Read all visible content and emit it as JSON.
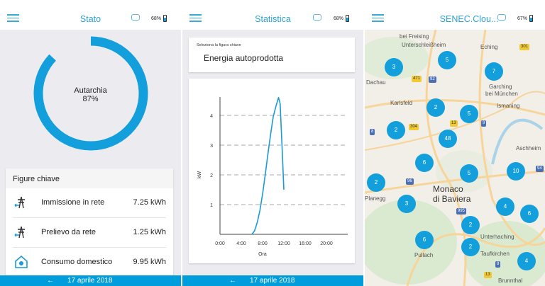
{
  "accent": "#139fdc",
  "bottom_date": "17 aprile 2018",
  "status": {
    "title": "Stato",
    "battery": "68%",
    "ring": {
      "label": "Autarchia",
      "value": "87%",
      "percent": 87
    },
    "key_figures": {
      "title": "Figure chiave",
      "rows": [
        {
          "icon": "grid-feed-in-icon",
          "label": "Immissione in rete",
          "value": "7.25 kWh"
        },
        {
          "icon": "grid-draw-icon",
          "label": "Prelievo da rete",
          "value": "1.25 kWh"
        },
        {
          "icon": "house-consumption-icon",
          "label": "Consumo domestico",
          "value": "9.95 kWh"
        }
      ]
    }
  },
  "stats": {
    "title": "Statistica",
    "battery": "68%",
    "select_label": "Seleziona la figura chiave",
    "select_value": "Energia autoprodotta",
    "chart_data": {
      "type": "line",
      "xlabel": "Ora",
      "ylabel": "kW",
      "xlim": [
        0,
        24
      ],
      "ylim": [
        0,
        4.6
      ],
      "xticks": [
        "0:00",
        "4:00",
        "8:00",
        "12:00",
        "16:00",
        "20:00"
      ],
      "yticks": [
        "1",
        "2",
        "3",
        "4"
      ],
      "grid": "horizontal dashed",
      "x": [
        6,
        6.5,
        7,
        7.5,
        8,
        8.5,
        9,
        9.5,
        10,
        10.5,
        11,
        11.3,
        11.6,
        12
      ],
      "values": [
        0,
        0.12,
        0.4,
        0.8,
        1.35,
        2.0,
        2.7,
        3.35,
        3.95,
        4.3,
        4.6,
        4.4,
        3.2,
        1.5
      ]
    }
  },
  "map": {
    "title": "SENEC.Clou...",
    "battery": "67%",
    "places": [
      "bei Freising",
      "Eching",
      "Unterschleißheim",
      "Dachau",
      "Garching",
      "bei München",
      "Karlsfeld",
      "Ismaning",
      "Aschheim",
      "Monaco",
      "di Baviera",
      "Planegg",
      "Unterhaching",
      "Taufkirchen",
      "Pullach",
      "Brunnthal"
    ],
    "roads": [
      "301",
      "471",
      "92",
      "304",
      "13",
      "9",
      "8",
      "94",
      "96",
      "995",
      "8",
      "13"
    ],
    "clusters": [
      "3",
      "5",
      "7",
      "2",
      "5",
      "2",
      "48",
      "6",
      "5",
      "10",
      "2",
      "3",
      "4",
      "6",
      "2",
      "6",
      "2",
      "4"
    ]
  }
}
